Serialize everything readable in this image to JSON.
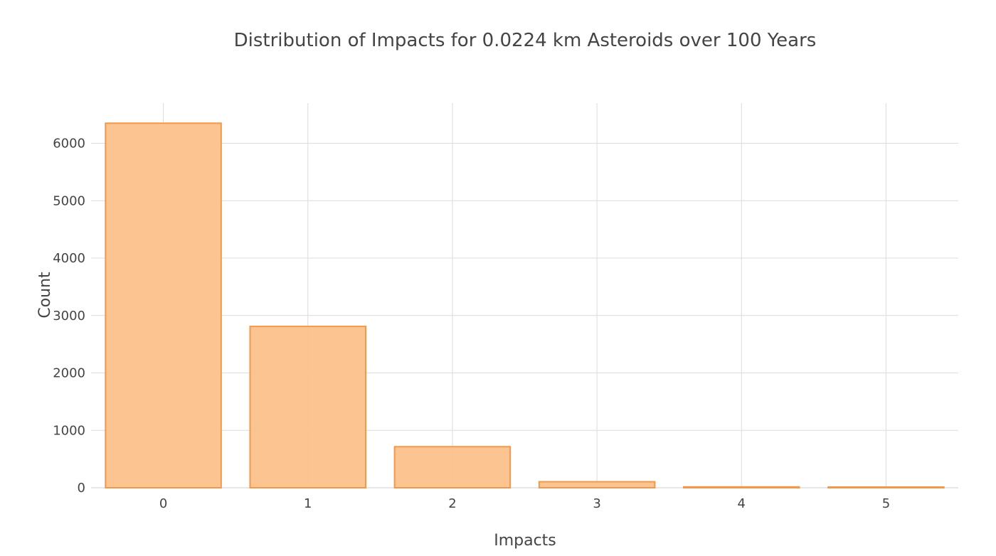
{
  "chart_data": {
    "type": "bar",
    "title": "Distribution of Impacts for 0.0224 km Asteroids over 100 Years",
    "xlabel": "Impacts",
    "ylabel": "Count",
    "categories": [
      "0",
      "1",
      "2",
      "3",
      "4",
      "5"
    ],
    "values": [
      6350,
      2810,
      715,
      105,
      15,
      5
    ],
    "ylim": [
      0,
      6700
    ],
    "yticks": [
      0,
      1000,
      2000,
      3000,
      4000,
      5000,
      6000
    ],
    "grid": true,
    "legend": "none",
    "colors": {
      "bar_fill": "#fbc18a",
      "bar_stroke": "#f0994c"
    }
  }
}
